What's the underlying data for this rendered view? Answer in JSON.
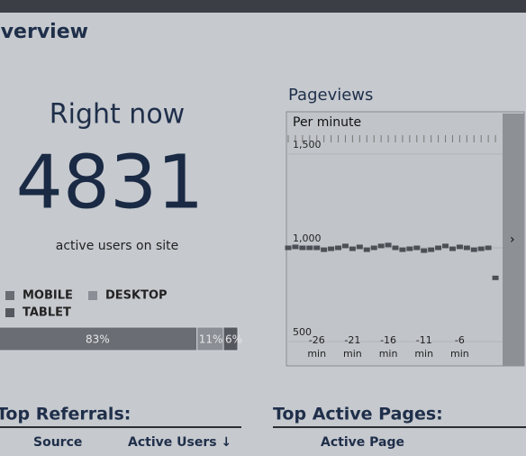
{
  "header": {
    "title": "Overview"
  },
  "realtime": {
    "heading": "Right now",
    "count": "4831",
    "caption": "active users on site"
  },
  "devices": {
    "legend": [
      "MOBILE",
      "DESKTOP",
      "TABLET"
    ],
    "colors": [
      "#6a6d73",
      "#8b8e94",
      "#55585e"
    ],
    "values": [
      83,
      11,
      6
    ],
    "value_labels": [
      "83%",
      "11%",
      "6%"
    ]
  },
  "pageviews": {
    "type": "scatter",
    "title": "Pageviews",
    "subtitle": "Per minute",
    "color": "#4c4f55",
    "x": [
      -30,
      -29,
      -28,
      -27,
      -26,
      -25,
      -24,
      -23,
      -22,
      -21,
      -20,
      -19,
      -18,
      -17,
      -16,
      -15,
      -14,
      -13,
      -12,
      -11,
      -10,
      -9,
      -8,
      -7,
      -6,
      -5,
      -4,
      -3,
      -2,
      -1
    ],
    "values": [
      1000,
      1005,
      1000,
      1000,
      1000,
      990,
      995,
      1000,
      1010,
      995,
      1005,
      990,
      1000,
      1010,
      1015,
      1000,
      990,
      995,
      1000,
      985,
      990,
      1000,
      1010,
      995,
      1005,
      1000,
      990,
      995,
      1000,
      840
    ],
    "xlim": [
      -30,
      0
    ],
    "xticks": [
      {
        "value": -26,
        "label": "-26 min"
      },
      {
        "value": -21,
        "label": "-21 min"
      },
      {
        "value": -16,
        "label": "-16 min"
      },
      {
        "value": -11,
        "label": "-11 min"
      },
      {
        "value": -6,
        "label": "-6 min"
      }
    ],
    "ylim": [
      400,
      1600
    ],
    "yticks": [
      {
        "value": 500,
        "label": "500"
      },
      {
        "value": 1000,
        "label": "1,000"
      },
      {
        "value": 1500,
        "label": "1,500"
      }
    ]
  },
  "top_referrals": {
    "title": "Top Referrals:",
    "columns": [
      "Source",
      "Active Users ↓"
    ]
  },
  "top_active_pages": {
    "title": "Top Active Pages:",
    "columns": [
      "Active Page"
    ]
  }
}
